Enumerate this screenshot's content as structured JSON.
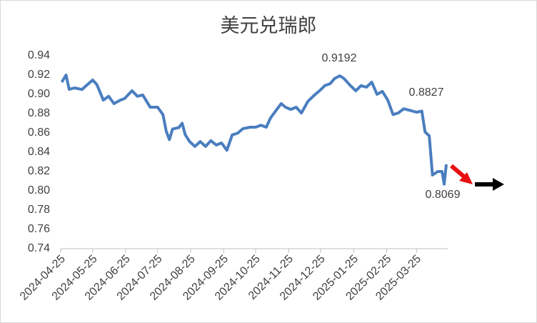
{
  "chart_data": {
    "type": "line",
    "title": "美元兑瑞郎",
    "x": [
      "2024-04-26",
      "2024-04-30",
      "2024-05-03",
      "2024-05-08",
      "2024-05-15",
      "2024-05-20",
      "2024-05-25",
      "2024-05-29",
      "2024-06-04",
      "2024-06-09",
      "2024-06-14",
      "2024-06-20",
      "2024-06-24",
      "2024-07-01",
      "2024-07-06",
      "2024-07-11",
      "2024-07-18",
      "2024-07-25",
      "2024-07-30",
      "2024-08-02",
      "2024-08-05",
      "2024-08-08",
      "2024-08-14",
      "2024-08-17",
      "2024-08-20",
      "2024-08-24",
      "2024-08-29",
      "2024-09-03",
      "2024-09-08",
      "2024-09-13",
      "2024-09-18",
      "2024-09-23",
      "2024-09-28",
      "2024-10-03",
      "2024-10-08",
      "2024-10-13",
      "2024-10-20",
      "2024-10-25",
      "2024-10-30",
      "2024-11-04",
      "2024-11-08",
      "2024-11-13",
      "2024-11-18",
      "2024-11-22",
      "2024-11-27",
      "2024-12-02",
      "2024-12-07",
      "2024-12-13",
      "2024-12-19",
      "2024-12-24",
      "2024-12-29",
      "2025-01-03",
      "2025-01-07",
      "2025-01-12",
      "2025-01-16",
      "2025-01-22",
      "2025-01-27",
      "2025-02-01",
      "2025-02-06",
      "2025-02-11",
      "2025-02-16",
      "2025-02-21",
      "2025-02-26",
      "2025-03-03",
      "2025-03-08",
      "2025-03-13",
      "2025-03-20",
      "2025-03-25",
      "2025-03-30",
      "2025-04-02",
      "2025-04-06",
      "2025-04-09",
      "2025-04-14",
      "2025-04-18",
      "2025-04-20",
      "2025-04-22"
    ],
    "values": [
      0.9126,
      0.92,
      0.9052,
      0.9067,
      0.905,
      0.91,
      0.9148,
      0.91,
      0.894,
      0.898,
      0.8904,
      0.894,
      0.8956,
      0.9037,
      0.898,
      0.8993,
      0.8867,
      0.8867,
      0.879,
      0.862,
      0.853,
      0.864,
      0.8656,
      0.87,
      0.858,
      0.851,
      0.846,
      0.851,
      0.846,
      0.852,
      0.8474,
      0.8496,
      0.842,
      0.858,
      0.8596,
      0.8644,
      0.8659,
      0.8659,
      0.868,
      0.8659,
      0.8756,
      0.883,
      0.8904,
      0.8867,
      0.8844,
      0.8867,
      0.8807,
      0.8926,
      0.899,
      0.9037,
      0.909,
      0.911,
      0.9163,
      0.9192,
      0.9163,
      0.909,
      0.9037,
      0.909,
      0.9074,
      0.9126,
      0.9,
      0.903,
      0.894,
      0.879,
      0.8807,
      0.885,
      0.883,
      0.8815,
      0.8827,
      0.861,
      0.857,
      0.8163,
      0.82,
      0.82,
      0.8069,
      0.8274
    ],
    "color": "#4a7ebf",
    "xlim": [
      "2024-04-25",
      "2025-04-22"
    ],
    "xticks": [
      "2024-04-25",
      "2024-05-25",
      "2024-06-25",
      "2024-07-25",
      "2024-08-25",
      "2024-09-25",
      "2024-10-25",
      "2024-11-25",
      "2024-12-25",
      "2025-01-25",
      "2025-02-25",
      "2025-03-25"
    ],
    "ylim": [
      0.74,
      0.94
    ],
    "yticks": [
      0.74,
      0.76,
      0.78,
      {
        "value": 0.8,
        "label": "0.80"
      },
      0.82,
      0.84,
      0.86,
      0.88,
      {
        "value": 0.9,
        "label": "0.90"
      },
      0.92,
      0.94
    ],
    "annotations": [
      "0.9192",
      "0.8827",
      "0.8069"
    ]
  }
}
